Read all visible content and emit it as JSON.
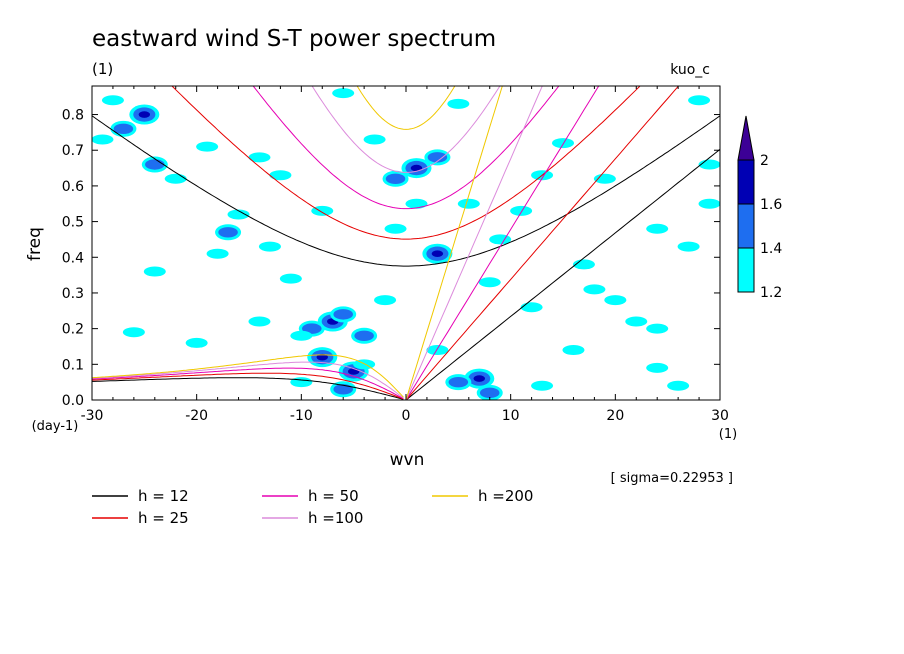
{
  "chart_data": {
    "type": "heatmap",
    "title": "eastward wind S-T power spectrum",
    "subtitle": "(1)",
    "source_label": "kuo_c",
    "xlabel": "wvn",
    "ylabel": "freq",
    "x_unit": "(1)",
    "y_unit": "(day-1)",
    "xlim": [
      -30,
      30
    ],
    "ylim": [
      0,
      0.88
    ],
    "x_ticks": [
      -30,
      -20,
      -10,
      0,
      10,
      20,
      30
    ],
    "x_tick_labels": [
      "-30",
      "-20",
      "-10",
      "0",
      "10",
      "20",
      "30"
    ],
    "y_ticks": [
      0,
      0.1,
      0.2,
      0.3,
      0.4,
      0.5,
      0.6,
      0.7,
      0.8
    ],
    "y_tick_labels": [
      "0.0",
      "0.1",
      "0.2",
      "0.3",
      "0.4",
      "0.5",
      "0.6",
      "0.7",
      "0.8"
    ],
    "annotation": "[ sigma=0.22953 ]",
    "colorbar": {
      "levels": [
        1.2,
        1.4,
        1.6,
        2
      ],
      "labels": [
        "1.2",
        "1.4",
        "1.6",
        "2"
      ],
      "colors": [
        "#00ffff",
        "#1e6ef0",
        "#0000b4",
        "#3c0096"
      ]
    },
    "dispersion_curves": [
      {
        "label": "h = 12",
        "h": 12,
        "color": "#000000"
      },
      {
        "label": "h = 25",
        "h": 25,
        "color": "#e60000"
      },
      {
        "label": "h = 50",
        "h": 50,
        "color": "#e600b4"
      },
      {
        "label": "h =100",
        "h": 100,
        "color": "#dc8cdc"
      },
      {
        "label": "h =200",
        "h": 200,
        "color": "#f0c800"
      }
    ],
    "power_regions": [
      {
        "x": -7,
        "y": 0.22,
        "level": 3
      },
      {
        "x": -8,
        "y": 0.12,
        "level": 3
      },
      {
        "x": -5,
        "y": 0.08,
        "level": 3
      },
      {
        "x": -6,
        "y": 0.24,
        "level": 2
      },
      {
        "x": -9,
        "y": 0.2,
        "level": 2
      },
      {
        "x": -4,
        "y": 0.18,
        "level": 2
      },
      {
        "x": -6,
        "y": 0.03,
        "level": 2
      },
      {
        "x": 7,
        "y": 0.06,
        "level": 3
      },
      {
        "x": 5,
        "y": 0.05,
        "level": 2
      },
      {
        "x": 8,
        "y": 0.02,
        "level": 2
      },
      {
        "x": 1,
        "y": 0.65,
        "level": 3
      },
      {
        "x": -1,
        "y": 0.62,
        "level": 2
      },
      {
        "x": 3,
        "y": 0.68,
        "level": 2
      },
      {
        "x": -25,
        "y": 0.8,
        "level": 3
      },
      {
        "x": -24,
        "y": 0.66,
        "level": 2
      },
      {
        "x": -17,
        "y": 0.47,
        "level": 2
      },
      {
        "x": 3,
        "y": 0.41,
        "level": 3
      },
      {
        "x": -27,
        "y": 0.76,
        "level": 2
      },
      {
        "x": -19,
        "y": 0.71,
        "level": 1
      },
      {
        "x": -12,
        "y": 0.63,
        "level": 1
      },
      {
        "x": -14,
        "y": 0.68,
        "level": 1
      },
      {
        "x": -22,
        "y": 0.62,
        "level": 1
      },
      {
        "x": -16,
        "y": 0.52,
        "level": 1
      },
      {
        "x": -18,
        "y": 0.41,
        "level": 1
      },
      {
        "x": -11,
        "y": 0.34,
        "level": 1
      },
      {
        "x": -28,
        "y": 0.84,
        "level": 1
      },
      {
        "x": -29,
        "y": 0.73,
        "level": 1
      },
      {
        "x": -24,
        "y": 0.36,
        "level": 1
      },
      {
        "x": -6,
        "y": 0.86,
        "level": 1
      },
      {
        "x": 5,
        "y": 0.83,
        "level": 1
      },
      {
        "x": -3,
        "y": 0.73,
        "level": 1
      },
      {
        "x": 6,
        "y": 0.55,
        "level": 1
      },
      {
        "x": 9,
        "y": 0.45,
        "level": 1
      },
      {
        "x": 13,
        "y": 0.63,
        "level": 1
      },
      {
        "x": 15,
        "y": 0.72,
        "level": 1
      },
      {
        "x": 19,
        "y": 0.62,
        "level": 1
      },
      {
        "x": 24,
        "y": 0.48,
        "level": 1
      },
      {
        "x": 27,
        "y": 0.43,
        "level": 1
      },
      {
        "x": 29,
        "y": 0.66,
        "level": 1
      },
      {
        "x": 29,
        "y": 0.55,
        "level": 1
      },
      {
        "x": 17,
        "y": 0.38,
        "level": 1
      },
      {
        "x": 20,
        "y": 0.28,
        "level": 1
      },
      {
        "x": 22,
        "y": 0.22,
        "level": 1
      },
      {
        "x": 12,
        "y": 0.26,
        "level": 1
      },
      {
        "x": 16,
        "y": 0.14,
        "level": 1
      },
      {
        "x": 24,
        "y": 0.09,
        "level": 1
      },
      {
        "x": 26,
        "y": 0.04,
        "level": 1
      },
      {
        "x": 13,
        "y": 0.04,
        "level": 1
      },
      {
        "x": 3,
        "y": 0.14,
        "level": 1
      },
      {
        "x": -2,
        "y": 0.28,
        "level": 1
      },
      {
        "x": -10,
        "y": 0.05,
        "level": 1
      },
      {
        "x": -14,
        "y": 0.22,
        "level": 1
      },
      {
        "x": -20,
        "y": 0.16,
        "level": 1
      },
      {
        "x": -26,
        "y": 0.19,
        "level": 1
      },
      {
        "x": -13,
        "y": 0.43,
        "level": 1
      },
      {
        "x": -8,
        "y": 0.53,
        "level": 1
      },
      {
        "x": -1,
        "y": 0.48,
        "level": 1
      },
      {
        "x": 1,
        "y": 0.55,
        "level": 1
      },
      {
        "x": 8,
        "y": 0.33,
        "level": 1
      },
      {
        "x": 11,
        "y": 0.53,
        "level": 1
      },
      {
        "x": 28,
        "y": 0.84,
        "level": 1
      },
      {
        "x": 24,
        "y": 0.2,
        "level": 1
      },
      {
        "x": 18,
        "y": 0.31,
        "level": 1
      },
      {
        "x": -4,
        "y": 0.1,
        "level": 1
      },
      {
        "x": -10,
        "y": 0.18,
        "level": 1
      }
    ]
  }
}
